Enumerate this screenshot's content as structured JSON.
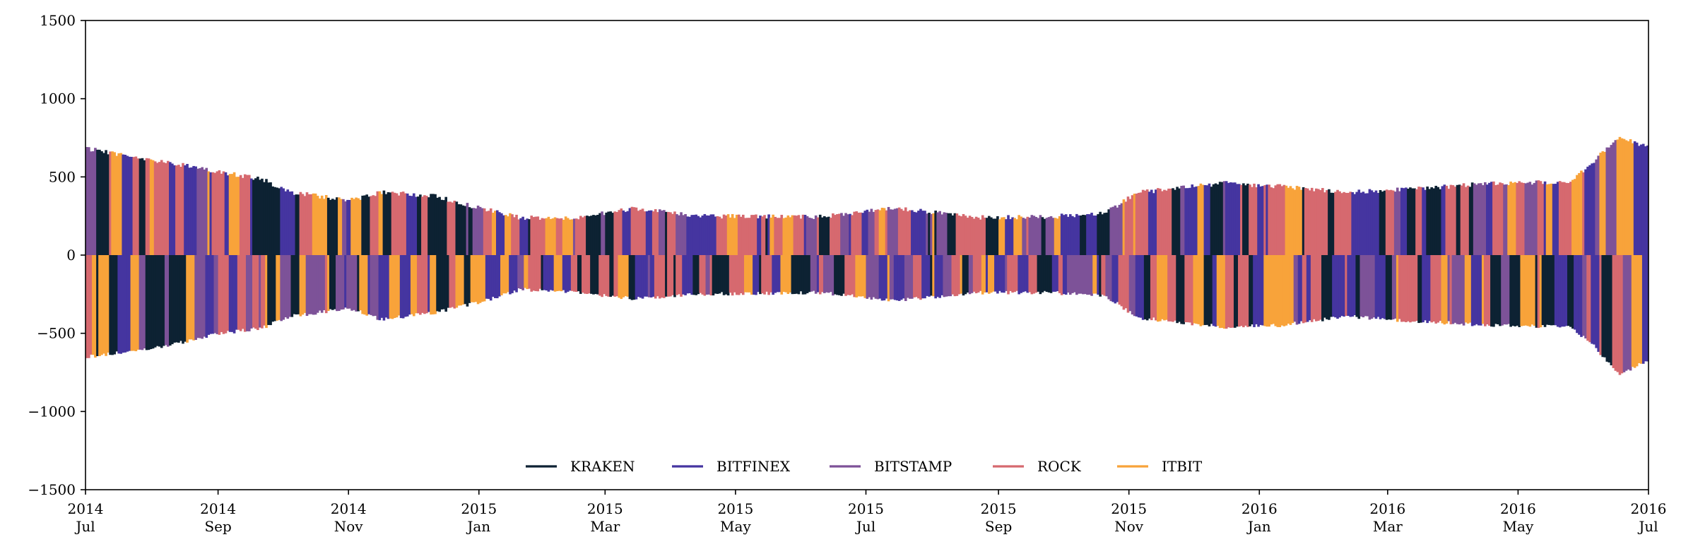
{
  "chart_data": {
    "type": "bar",
    "title": "",
    "xlabel": "",
    "ylabel": "",
    "ylim": [
      -1500,
      1500
    ],
    "xlim": [
      "2014-07-01",
      "2016-07-01"
    ],
    "y_ticks": [
      -1500,
      -1000,
      -500,
      0,
      500,
      1000,
      1500
    ],
    "x_ticks": [
      {
        "date": "2014-07-01",
        "year": "2014",
        "month": "Jul"
      },
      {
        "date": "2014-09-01",
        "year": "2014",
        "month": "Sep"
      },
      {
        "date": "2014-11-01",
        "year": "2014",
        "month": "Nov"
      },
      {
        "date": "2015-01-01",
        "year": "2015",
        "month": "Jan"
      },
      {
        "date": "2015-03-01",
        "year": "2015",
        "month": "Mar"
      },
      {
        "date": "2015-05-01",
        "year": "2015",
        "month": "May"
      },
      {
        "date": "2015-07-01",
        "year": "2015",
        "month": "Jul"
      },
      {
        "date": "2015-09-01",
        "year": "2015",
        "month": "Sep"
      },
      {
        "date": "2015-11-01",
        "year": "2015",
        "month": "Nov"
      },
      {
        "date": "2016-01-01",
        "year": "2016",
        "month": "Jan"
      },
      {
        "date": "2016-03-01",
        "year": "2016",
        "month": "Mar"
      },
      {
        "date": "2016-05-01",
        "year": "2016",
        "month": "May"
      },
      {
        "date": "2016-07-01",
        "year": "2016",
        "month": "Jul"
      }
    ],
    "grid": false,
    "legend_position": "lower-center",
    "series": [
      {
        "name": "KRAKEN",
        "color": "#0d2233"
      },
      {
        "name": "BITFINEX",
        "color": "#4535a0"
      },
      {
        "name": "BITSTAMP",
        "color": "#7d5298"
      },
      {
        "name": "ROCK",
        "color": "#d6696f"
      },
      {
        "name": "ITBIT",
        "color": "#f8a33a"
      }
    ],
    "upper_envelope": [
      {
        "x": "2014-07-01",
        "y": 680
      },
      {
        "x": "2014-08-01",
        "y": 610
      },
      {
        "x": "2014-09-01",
        "y": 530
      },
      {
        "x": "2014-09-20",
        "y": 490
      },
      {
        "x": "2014-10-05",
        "y": 400
      },
      {
        "x": "2014-11-01",
        "y": 350
      },
      {
        "x": "2014-11-15",
        "y": 400
      },
      {
        "x": "2014-12-10",
        "y": 380
      },
      {
        "x": "2015-01-01",
        "y": 300
      },
      {
        "x": "2015-01-20",
        "y": 240
      },
      {
        "x": "2015-02-15",
        "y": 240
      },
      {
        "x": "2015-03-15",
        "y": 300
      },
      {
        "x": "2015-04-15",
        "y": 250
      },
      {
        "x": "2015-06-10",
        "y": 245
      },
      {
        "x": "2015-07-15",
        "y": 300
      },
      {
        "x": "2015-08-20",
        "y": 240
      },
      {
        "x": "2015-09-25",
        "y": 245
      },
      {
        "x": "2015-10-20",
        "y": 270
      },
      {
        "x": "2015-11-05",
        "y": 400
      },
      {
        "x": "2015-12-15",
        "y": 460
      },
      {
        "x": "2016-01-10",
        "y": 440
      },
      {
        "x": "2016-02-10",
        "y": 400
      },
      {
        "x": "2016-03-10",
        "y": 420
      },
      {
        "x": "2016-04-20",
        "y": 460
      },
      {
        "x": "2016-05-25",
        "y": 470
      },
      {
        "x": "2016-06-05",
        "y": 600
      },
      {
        "x": "2016-06-17",
        "y": 760
      },
      {
        "x": "2016-07-01",
        "y": 680
      }
    ],
    "lower_envelope": [
      {
        "x": "2014-07-01",
        "y": -650
      },
      {
        "x": "2014-08-01",
        "y": -600
      },
      {
        "x": "2014-09-01",
        "y": -500
      },
      {
        "x": "2014-09-20",
        "y": -470
      },
      {
        "x": "2014-10-05",
        "y": -390
      },
      {
        "x": "2014-11-01",
        "y": -340
      },
      {
        "x": "2014-11-15",
        "y": -410
      },
      {
        "x": "2014-12-10",
        "y": -370
      },
      {
        "x": "2015-01-01",
        "y": -300
      },
      {
        "x": "2015-01-20",
        "y": -220
      },
      {
        "x": "2015-02-15",
        "y": -240
      },
      {
        "x": "2015-03-15",
        "y": -280
      },
      {
        "x": "2015-04-15",
        "y": -250
      },
      {
        "x": "2015-06-10",
        "y": -240
      },
      {
        "x": "2015-07-15",
        "y": -290
      },
      {
        "x": "2015-08-20",
        "y": -240
      },
      {
        "x": "2015-09-25",
        "y": -240
      },
      {
        "x": "2015-10-20",
        "y": -260
      },
      {
        "x": "2015-11-05",
        "y": -400
      },
      {
        "x": "2015-12-15",
        "y": -460
      },
      {
        "x": "2016-01-10",
        "y": -450
      },
      {
        "x": "2016-02-10",
        "y": -390
      },
      {
        "x": "2016-03-10",
        "y": -420
      },
      {
        "x": "2016-04-20",
        "y": -450
      },
      {
        "x": "2016-05-25",
        "y": -460
      },
      {
        "x": "2016-06-05",
        "y": -580
      },
      {
        "x": "2016-06-17",
        "y": -770
      },
      {
        "x": "2016-07-01",
        "y": -660
      }
    ]
  }
}
